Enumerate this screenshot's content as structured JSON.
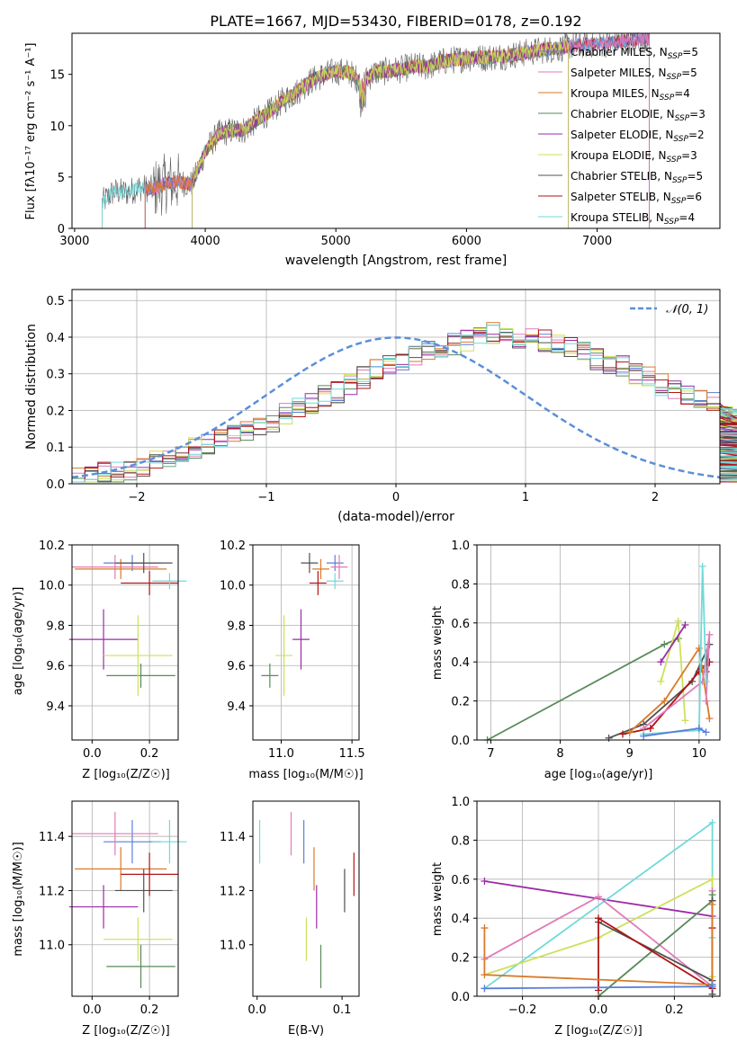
{
  "colors": {
    "c_miles": "#5b7fd8",
    "s_miles": "#e07bb8",
    "k_miles": "#d97a2a",
    "c_elodie": "#5a8a5a",
    "s_elodie": "#9c2aa8",
    "k_elodie": "#cde05a",
    "c_stelib": "#505050",
    "s_stelib": "#b01515",
    "k_stelib": "#6fdada",
    "norm_line": "#5b8fd8",
    "grid": "#b0b0b0"
  },
  "spectrum": {
    "title": "PLATE=1667, MJD=53430, FIBERID=0178, z=0.192",
    "xlabel": "wavelength [Angstrom, rest frame]",
    "ylabel": "Flux [fλ10⁻¹⁷ erg cm⁻² s⁻¹ A⁻¹]",
    "xticks": [
      "3000",
      "4000",
      "5000",
      "6000",
      "7000"
    ],
    "yticks": [
      "0",
      "5",
      "10",
      "15"
    ],
    "legend": [
      {
        "base": "Chabrier MILES, N",
        "sub": "SSP",
        "tail": "=5",
        "key": "c_miles"
      },
      {
        "base": "Salpeter MILES, N",
        "sub": "SSP",
        "tail": "=5",
        "key": "s_miles"
      },
      {
        "base": "Kroupa MILES, N",
        "sub": "SSP",
        "tail": "=4",
        "key": "k_miles"
      },
      {
        "base": "Chabrier ELODIE, N",
        "sub": "SSP",
        "tail": "=3",
        "key": "c_elodie"
      },
      {
        "base": "Salpeter ELODIE, N",
        "sub": "SSP",
        "tail": "=2",
        "key": "s_elodie"
      },
      {
        "base": "Kroupa ELODIE, N",
        "sub": "SSP",
        "tail": "=3",
        "key": "k_elodie"
      },
      {
        "base": "Chabrier STELIB, N",
        "sub": "SSP",
        "tail": "=5",
        "key": "c_stelib"
      },
      {
        "base": "Salpeter STELIB, N",
        "sub": "SSP",
        "tail": "=6",
        "key": "s_stelib"
      },
      {
        "base": "Kroupa STELIB, N",
        "sub": "SSP",
        "tail": "=4",
        "key": "k_stelib"
      }
    ]
  },
  "residuals": {
    "xlabel": "(data-model)/error",
    "ylabel": "Normed distribution",
    "xticks": [
      "−2",
      "−1",
      "0",
      "1",
      "2"
    ],
    "yticks": [
      "0.0",
      "0.1",
      "0.2",
      "0.3",
      "0.4",
      "0.5"
    ],
    "legend_label": "𝒩(0, 1)"
  },
  "small": {
    "age_label": "age  [log₁₀(age/yr)]",
    "z_label": "Z [log₁₀(Z/Z☉)]",
    "mass_label": "mass [log₁₀(M/M☉)]",
    "ebv_label": "E(B-V)",
    "weight_label": "mass weight",
    "age_ticks": [
      "9.4",
      "9.6",
      "9.8",
      "10.0",
      "10.2"
    ],
    "mass_ticks": [
      "11.0",
      "11.2",
      "11.4"
    ],
    "z_ticks_small": [
      "0.0",
      "0.2"
    ],
    "mass_xticks": [
      "11.0",
      "11.5"
    ],
    "ebv_ticks": [
      "0.0",
      "0.1"
    ],
    "weight_ticks": [
      "0.0",
      "0.2",
      "0.4",
      "0.6",
      "0.8",
      "1.0"
    ],
    "age_xticks": [
      "7",
      "8",
      "9",
      "10"
    ],
    "z_xticks_wide": [
      "−0.2",
      "0.0",
      "0.2"
    ]
  },
  "chart_data": [
    {
      "type": "line",
      "title": "PLATE=1667, MJD=53430, FIBERID=0178, z=0.192",
      "xlabel": "wavelength [Angstrom, rest frame]",
      "ylabel": "Flux [fλ10⁻¹⁷ erg cm⁻² s⁻¹ A⁻¹]",
      "xlim": [
        2980,
        7940
      ],
      "ylim": [
        0,
        19
      ],
      "spectrum_knots": [
        [
          3210,
          2.5
        ],
        [
          3300,
          3.6
        ],
        [
          3400,
          3.5
        ],
        [
          3500,
          4.0
        ],
        [
          3600,
          3.8
        ],
        [
          3700,
          4.4
        ],
        [
          3800,
          4.5
        ],
        [
          3900,
          4.3
        ],
        [
          4000,
          7.5
        ],
        [
          4100,
          9.2
        ],
        [
          4200,
          9.5
        ],
        [
          4300,
          9.6
        ],
        [
          4400,
          10.6
        ],
        [
          4500,
          11.4
        ],
        [
          4600,
          12.5
        ],
        [
          4700,
          13.3
        ],
        [
          4800,
          14.3
        ],
        [
          4900,
          14.9
        ],
        [
          5000,
          15.3
        ],
        [
          5100,
          15.2
        ],
        [
          5200,
          14.2
        ],
        [
          5300,
          15.2
        ],
        [
          5400,
          15.3
        ],
        [
          5500,
          15.5
        ],
        [
          5600,
          15.8
        ],
        [
          5700,
          15.7
        ],
        [
          5800,
          16.2
        ],
        [
          5900,
          16.4
        ],
        [
          6000,
          16.6
        ],
        [
          6100,
          16.6
        ],
        [
          6200,
          16.7
        ],
        [
          6300,
          16.8
        ],
        [
          6400,
          17.0
        ],
        [
          6500,
          17.2
        ],
        [
          6600,
          17.4
        ],
        [
          6700,
          17.5
        ],
        [
          6800,
          17.8
        ],
        [
          6900,
          17.9
        ],
        [
          7000,
          18.0
        ],
        [
          7100,
          18.0
        ],
        [
          7200,
          18.3
        ],
        [
          7300,
          18.4
        ],
        [
          7400,
          18.5
        ]
      ],
      "series": [
        {
          "name": "Chabrier MILES, NSSP=5",
          "range": [
            3540,
            7400
          ]
        },
        {
          "name": "Salpeter MILES, NSSP=5",
          "range": [
            3540,
            7400
          ]
        },
        {
          "name": "Kroupa MILES, NSSP=4",
          "range": [
            3540,
            6780
          ]
        },
        {
          "name": "Chabrier ELODIE, NSSP=3",
          "range": [
            3900,
            6780
          ]
        },
        {
          "name": "Salpeter ELODIE, NSSP=2",
          "range": [
            3900,
            6780
          ]
        },
        {
          "name": "Kroupa ELODIE, NSSP=3",
          "range": [
            3900,
            6780
          ]
        },
        {
          "name": "Chabrier STELIB, NSSP=5",
          "range": [
            3210,
            7400
          ]
        },
        {
          "name": "Salpeter STELIB, NSSP=6",
          "range": [
            3540,
            7400
          ]
        },
        {
          "name": "Kroupa STELIB, NSSP=4",
          "range": [
            3210,
            7400
          ]
        }
      ]
    },
    {
      "type": "area",
      "xlabel": "(data-model)/error",
      "ylabel": "Normed distribution",
      "xlim": [
        -2.5,
        2.5
      ],
      "ylim": [
        0,
        0.53
      ],
      "bin_width": 0.1,
      "bins_start": -2.5,
      "histogram": [
        0.02,
        0.02,
        0.03,
        0.03,
        0.04,
        0.05,
        0.06,
        0.07,
        0.08,
        0.1,
        0.11,
        0.12,
        0.13,
        0.14,
        0.16,
        0.17,
        0.19,
        0.21,
        0.22,
        0.24,
        0.25,
        0.27,
        0.29,
        0.31,
        0.32,
        0.34,
        0.35,
        0.36,
        0.37,
        0.38,
        0.39,
        0.4,
        0.41,
        0.41,
        0.4,
        0.4,
        0.39,
        0.38,
        0.37,
        0.36,
        0.34,
        0.33,
        0.32,
        0.3,
        0.29,
        0.27,
        0.26,
        0.24,
        0.23,
        0.22,
        0.21,
        0.19,
        0.18,
        0.17,
        0.15,
        0.14,
        0.13,
        0.11,
        0.1,
        0.09,
        0.08,
        0.07,
        0.06,
        0.05,
        0.05,
        0.04,
        0.04,
        0.03,
        0.03,
        0.02
      ],
      "legend": "𝒩(0, 1)"
    },
    {
      "type": "scatter",
      "xlabel": "Z [log₁₀(Z/Z☉)]",
      "ylabel": "age [log₁₀(age/yr)]",
      "xlim": [
        -0.07,
        0.3
      ],
      "ylim": [
        9.23,
        10.2
      ],
      "points": [
        {
          "key": "c_miles",
          "x": 0.14,
          "y": 10.11,
          "xe": 0.1,
          "ye": 0.04
        },
        {
          "key": "s_miles",
          "x": 0.08,
          "y": 10.09,
          "xe": 0.15,
          "ye": 0.06
        },
        {
          "key": "k_miles",
          "x": 0.1,
          "y": 10.08,
          "xe": 0.16,
          "ye": 0.05
        },
        {
          "key": "c_elodie",
          "x": 0.17,
          "y": 9.55,
          "xe": 0.12,
          "ye": 0.06
        },
        {
          "key": "s_elodie",
          "x": 0.04,
          "y": 9.73,
          "xe": 0.12,
          "ye": 0.15
        },
        {
          "key": "k_elodie",
          "x": 0.16,
          "y": 9.65,
          "xe": 0.12,
          "ye": 0.2
        },
        {
          "key": "c_stelib",
          "x": 0.18,
          "y": 10.11,
          "xe": 0.1,
          "ye": 0.05
        },
        {
          "key": "s_stelib",
          "x": 0.2,
          "y": 10.01,
          "xe": 0.1,
          "ye": 0.06
        },
        {
          "key": "k_stelib",
          "x": 0.27,
          "y": 10.02,
          "xe": 0.06,
          "ye": 0.04
        }
      ]
    },
    {
      "type": "scatter",
      "xlabel": "mass [log₁₀(M/M☉)]",
      "ylabel": "age",
      "xlim": [
        10.8,
        11.55
      ],
      "ylim": [
        9.23,
        10.2
      ],
      "points": [
        {
          "key": "c_miles",
          "x": 11.38,
          "y": 10.11
        },
        {
          "key": "s_miles",
          "x": 11.41,
          "y": 10.09
        },
        {
          "key": "k_miles",
          "x": 11.28,
          "y": 10.08
        },
        {
          "key": "c_elodie",
          "x": 10.92,
          "y": 9.55
        },
        {
          "key": "s_elodie",
          "x": 11.14,
          "y": 9.73
        },
        {
          "key": "k_elodie",
          "x": 11.02,
          "y": 9.65
        },
        {
          "key": "c_stelib",
          "x": 11.2,
          "y": 10.11
        },
        {
          "key": "s_stelib",
          "x": 11.26,
          "y": 10.01
        },
        {
          "key": "k_stelib",
          "x": 11.38,
          "y": 10.02
        }
      ]
    },
    {
      "type": "line",
      "xlabel": "age [log₁₀(age/yr)]",
      "ylabel": "mass weight",
      "xlim": [
        6.8,
        10.3
      ],
      "ylim": [
        0,
        1.0
      ]
    },
    {
      "type": "scatter",
      "xlabel": "Z [log₁₀(Z/Z☉)]",
      "ylabel": "mass [log₁₀(M/M☉)]",
      "xlim": [
        -0.07,
        0.3
      ],
      "ylim": [
        10.81,
        11.53
      ]
    },
    {
      "type": "scatter",
      "xlabel": "E(B-V)",
      "ylabel": "mass",
      "xlim": [
        -0.005,
        0.12
      ],
      "ylim": [
        10.81,
        11.53
      ]
    },
    {
      "type": "line",
      "xlabel": "Z [log₁₀(Z/Z☉)]",
      "ylabel": "mass weight",
      "xlim": [
        -0.32,
        0.32
      ],
      "ylim": [
        0,
        1.0
      ]
    }
  ]
}
